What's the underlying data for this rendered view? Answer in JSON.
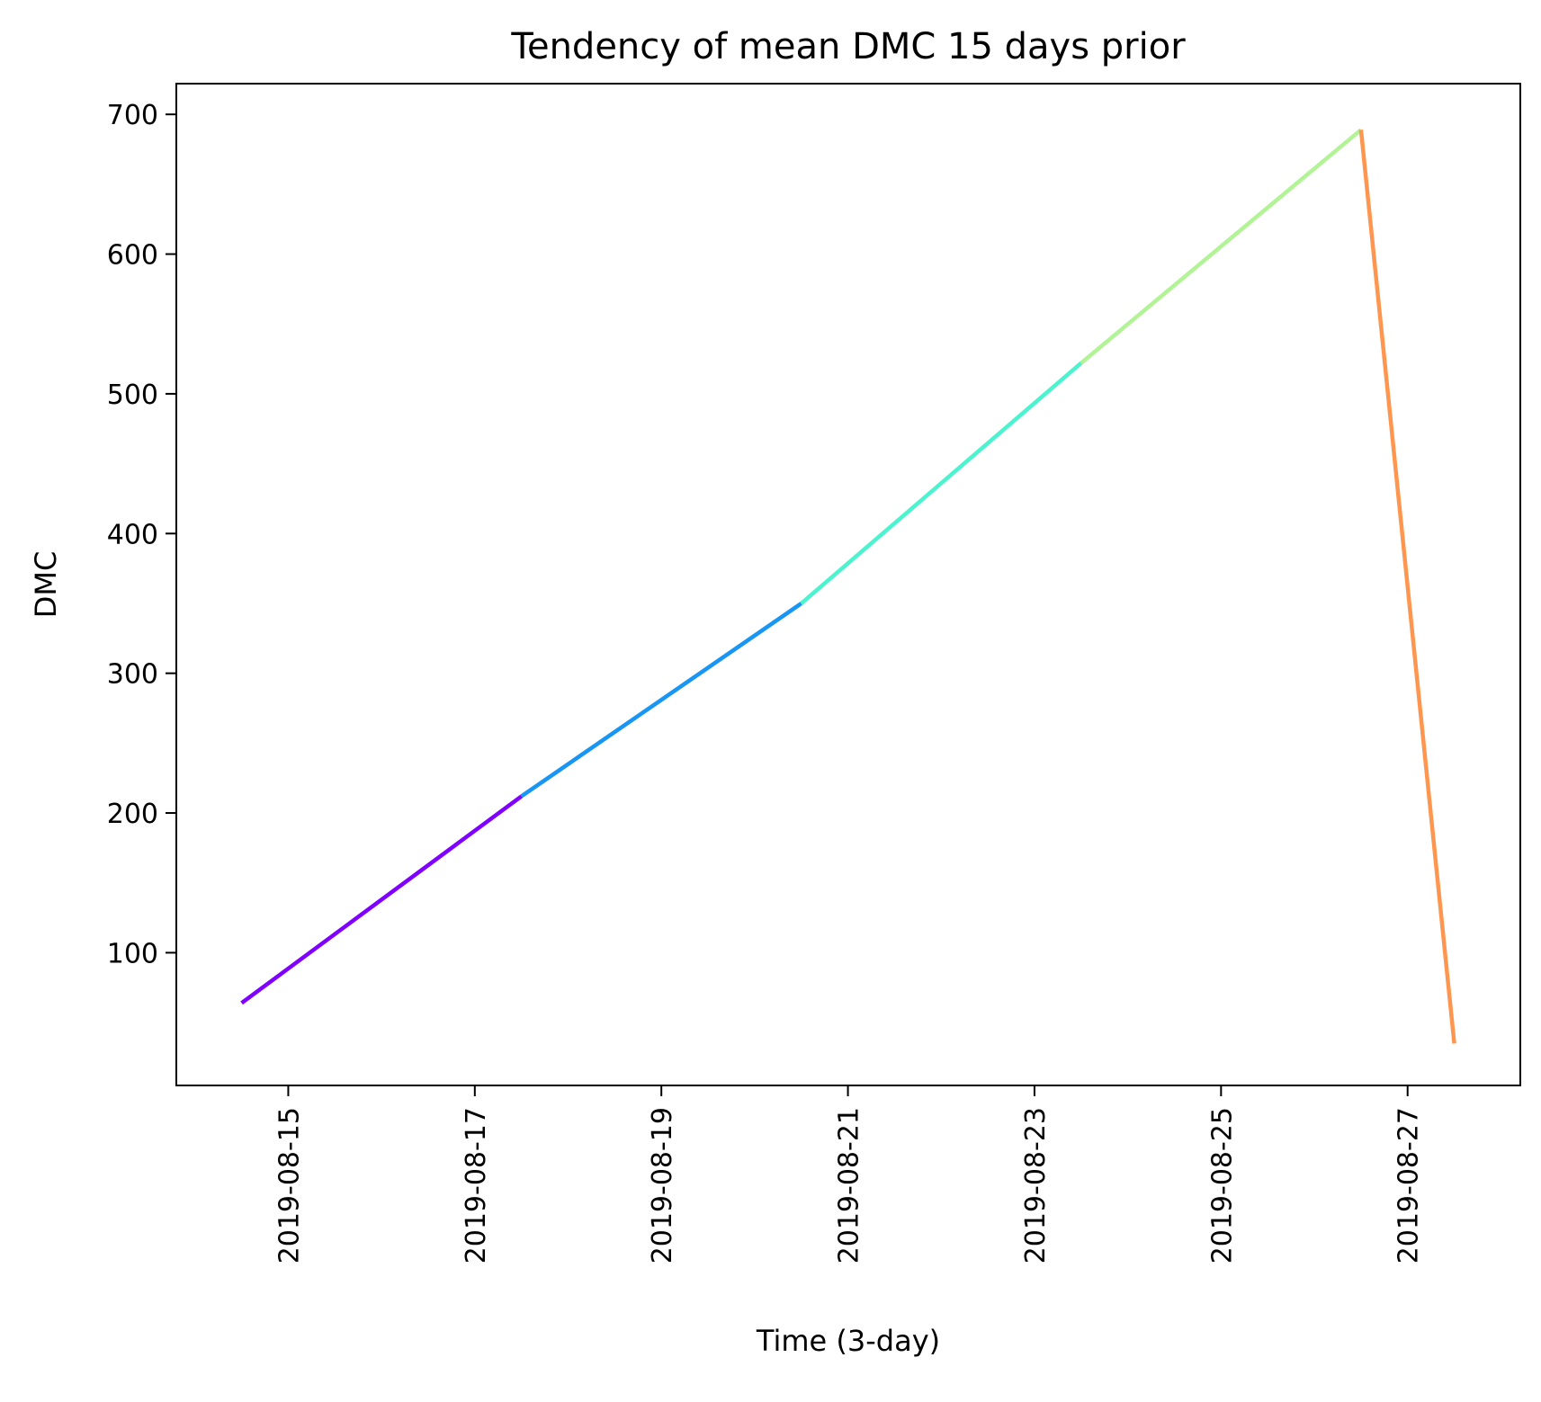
{
  "chart_data": {
    "type": "line",
    "title": "Tendency of mean DMC 15 days prior",
    "xlabel": "Time (3-day)",
    "ylabel": "DMC",
    "x_tick_labels": [
      "2019-08-15",
      "2019-08-17",
      "2019-08-19",
      "2019-08-21",
      "2019-08-23",
      "2019-08-25",
      "2019-08-27"
    ],
    "y_tick_labels": [
      "100",
      "200",
      "300",
      "400",
      "500",
      "600",
      "700"
    ],
    "y_ticks": [
      100,
      200,
      300,
      400,
      500,
      600,
      700
    ],
    "xlim": [
      "2019-08-13T19:12",
      "2019-08-28T05:00"
    ],
    "ylim": [
      5,
      722
    ],
    "grid": false,
    "segments": [
      {
        "color": "#8000ff",
        "x": [
          "2019-08-14T12:00",
          "2019-08-17T12:00"
        ],
        "y": [
          64,
          212
        ]
      },
      {
        "color": "#1996f3",
        "x": [
          "2019-08-17T12:00",
          "2019-08-20T12:00"
        ],
        "y": [
          212,
          350
        ]
      },
      {
        "color": "#4df3ce",
        "x": [
          "2019-08-20T12:00",
          "2019-08-23T12:00"
        ],
        "y": [
          350,
          522
        ]
      },
      {
        "color": "#b2f396",
        "x": [
          "2019-08-23T12:00",
          "2019-08-26T12:00"
        ],
        "y": [
          522,
          689
        ]
      },
      {
        "color": "#ff964f",
        "x": [
          "2019-08-26T12:00",
          "2019-08-27T12:00"
        ],
        "y": [
          689,
          35
        ]
      }
    ]
  }
}
